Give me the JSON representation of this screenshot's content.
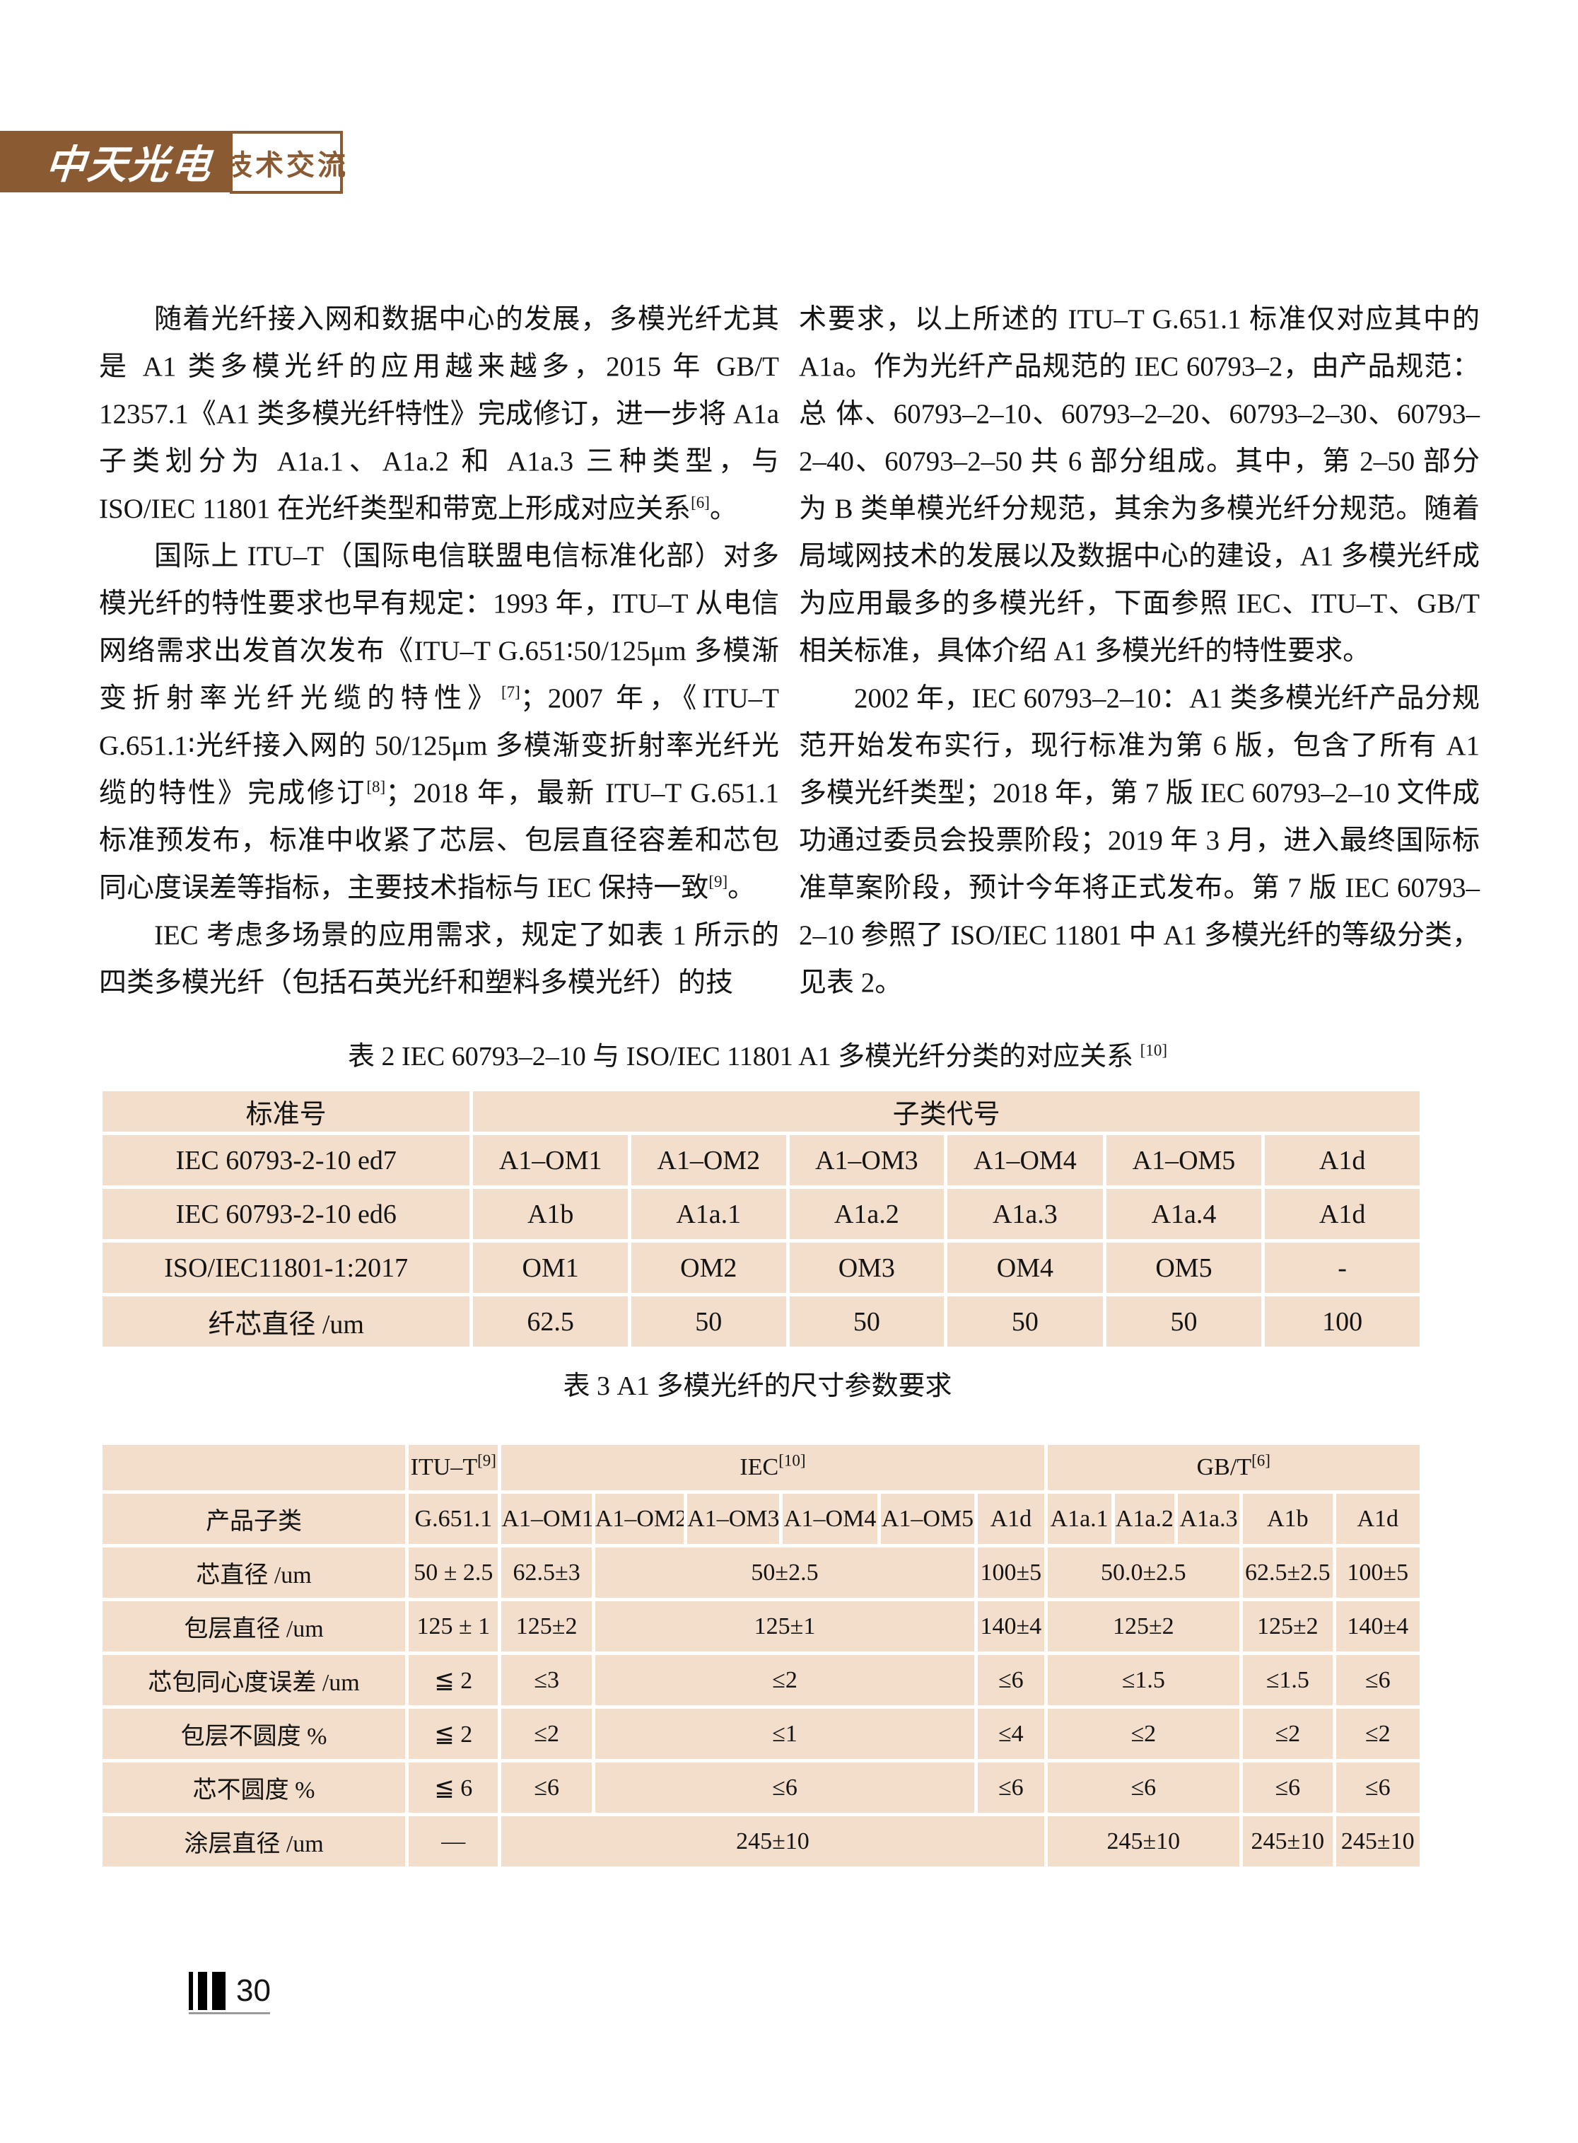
{
  "colors": {
    "brand_brown": "#8a5a33",
    "table_fill": "#f2decb"
  },
  "header": {
    "logo": "中天光电",
    "section": "技术交流"
  },
  "article": {
    "left": [
      "随着光纤接入网和数据中心的发展，多模光纤尤其是 A1 类多模光纤的应用越来越多，2015 年 GB/T 12357.1《A1 类多模光纤特性》完成修订，进一步将 A1a 子类划分为 A1a.1、A1a.2 和 A1a.3 三种类型，与 ISO/IEC 11801 在光纤类型和带宽上形成对应关系[6]。",
      "国际上 ITU–T（国际电信联盟电信标准化部）对多模光纤的特性要求也早有规定：1993 年，ITU–T 从电信网络需求出发首次发布《ITU–T G.651∶50/125μm 多模渐变折射率光纤光缆的特性》[7]；2007 年，《ITU–T G.651.1∶光纤接入网的 50/125μm 多模渐变折射率光纤光缆的特性》完成修订[8]；2018 年，最新 ITU–T G.651.1 标准预发布，标准中收紧了芯层、包层直径容差和芯包同心度误差等指标，主要技术指标与 IEC 保持一致[9]。",
      "IEC 考虑多场景的应用需求，规定了如表 1 所示的四类多模光纤（包括石英光纤和塑料多模光纤）的技"
    ],
    "right": [
      "术要求，以上所述的 ITU–T G.651.1 标准仅对应其中的 A1a。作为光纤产品规范的 IEC 60793–2，由产品规范：总 体、60793–2–10、60793–2–20、60793–2–30、60793–2–40、60793–2–50 共 6 部分组成。其中，第 2–50 部分为 B 类单模光纤分规范，其余为多模光纤分规范。随着局域网技术的发展以及数据中心的建设，A1 多模光纤成为应用最多的多模光纤，下面参照 IEC、ITU–T、GB/T 相关标准，具体介绍 A1 多模光纤的特性要求。",
      "2002 年，IEC 60793–2–10：A1 类多模光纤产品分规范开始发布实行，现行标准为第 6 版，包含了所有 A1 多模光纤类型；2018 年，第 7 版 IEC 60793–2–10 文件成功通过委员会投票阶段；2019 年 3 月，进入最终国际标准草案阶段，预计今年将正式发布。第 7 版 IEC 60793–2–10 参照了 ISO/IEC 11801 中 A1 多模光纤的等级分类，见表 2。"
    ]
  },
  "table2": {
    "caption": "表 2  IEC 60793–2–10 与 ISO/IEC 11801  A1 多模光纤分类的对应关系 [10]",
    "header": {
      "col1": "标准号",
      "col2": "子类代号"
    },
    "rows": [
      {
        "label": "IEC 60793-2-10 ed7",
        "values": [
          "A1–OM1",
          "A1–OM2",
          "A1–OM3",
          "A1–OM4",
          "A1–OM5",
          "A1d"
        ]
      },
      {
        "label": "IEC 60793-2-10 ed6",
        "values": [
          "A1b",
          "A1a.1",
          "A1a.2",
          "A1a.3",
          "A1a.4",
          "A1d"
        ]
      },
      {
        "label": "ISO/IEC11801-1:2017",
        "values": [
          "OM1",
          "OM2",
          "OM3",
          "OM4",
          "OM5",
          "-"
        ]
      },
      {
        "label": "纤芯直径 /um",
        "values": [
          "62.5",
          "50",
          "50",
          "50",
          "50",
          "100"
        ]
      }
    ]
  },
  "table3": {
    "caption": "表 3  A1 多模光纤的尺寸参数要求",
    "groups": [
      "ITU–T[9]",
      "IEC[10]",
      "GB/T[6]"
    ],
    "subclass_label": "产品子类",
    "subclasses": [
      "G.651.1",
      "A1–OM1",
      "A1–OM2",
      "A1–OM3",
      "A1–OM4",
      "A1–OM5",
      "A1d",
      "A1a.1",
      "A1a.2",
      "A1a.3",
      "A1b",
      "A1d"
    ],
    "rows": [
      {
        "label": "芯直径 /um",
        "cells": [
          "50 ± 2.5",
          "62.5±3",
          "50±2.5",
          "100±5",
          "50.0±2.5",
          "62.5±2.5",
          "100±5"
        ]
      },
      {
        "label": "包层直径 /um",
        "cells": [
          "125 ± 1",
          "125±2",
          "125±1",
          "140±4",
          "125±2",
          "125±2",
          "140±4"
        ]
      },
      {
        "label": "芯包同心度误差 /um",
        "cells": [
          "≦ 2",
          "≤3",
          "≤2",
          "≤6",
          "≤1.5",
          "≤1.5",
          "≤6"
        ]
      },
      {
        "label": "包层不圆度 %",
        "cells": [
          "≦ 2",
          "≤2",
          "≤1",
          "≤4",
          "≤2",
          "≤2",
          "≤2"
        ]
      },
      {
        "label": "芯不圆度 %",
        "cells": [
          "≦ 6",
          "≤6",
          "≤6",
          "≤6",
          "≤6",
          "≤6",
          "≤6"
        ]
      },
      {
        "label": "涂层直径 /um",
        "cells": [
          "—",
          "245±10",
          "245±10",
          "245±10",
          "245±10"
        ]
      }
    ]
  },
  "footer": {
    "page_number": "30"
  }
}
